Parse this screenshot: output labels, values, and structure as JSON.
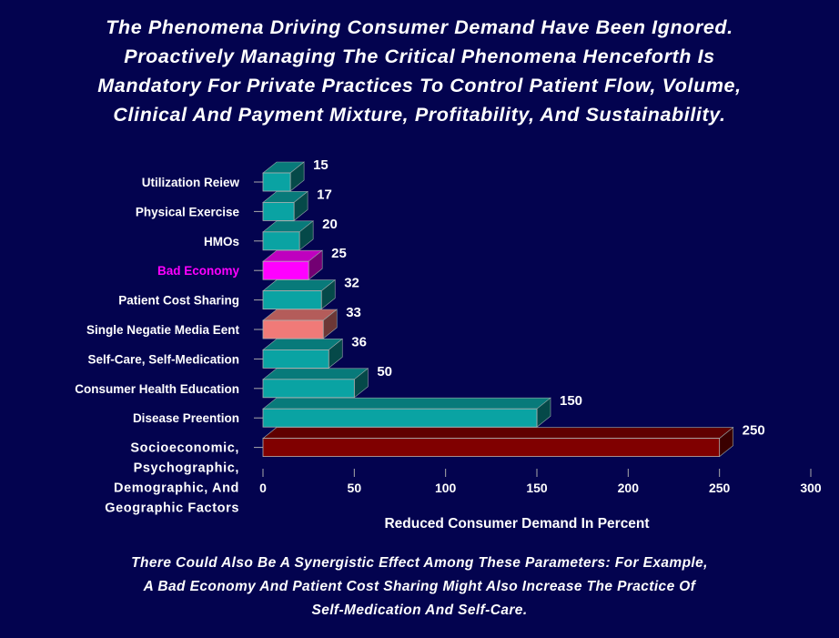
{
  "title_lines": [
    "The Phenomena Driving Consumer Demand Have Been Ignored.",
    "Proactively Managing The Critical Phenomena Henceforth Is",
    "Mandatory For Private Practices To Control Patient Flow, Volume,",
    "Clinical And Payment Mixture, Profitability, And Sustainability."
  ],
  "footer_lines": [
    "There Could Also Be A Synergistic Effect Among These Parameters: For Example,",
    "A Bad Economy And Patient Cost Sharing Might Also Increase The Practice Of",
    "Self-Medication And Self-Care."
  ],
  "colors": {
    "background": "#03034f",
    "teal": "#0aa3a3",
    "magenta": "#ff00ff",
    "salmon": "#f07a78",
    "dark_red": "#800000"
  },
  "chart_data": {
    "type": "bar",
    "orientation": "horizontal",
    "style": "3d",
    "xlabel": "Reduced Consumer Demand In Percent",
    "xlim": [
      0,
      300
    ],
    "xticks": [
      "0",
      "50",
      "100",
      "150",
      "200",
      "250",
      "300"
    ],
    "grid": false,
    "categories": [
      {
        "label": [
          "Utilization Reiew"
        ],
        "value": 15,
        "color": "teal",
        "label_color": "#ffffff"
      },
      {
        "label": [
          "Physical Exercise"
        ],
        "value": 17,
        "color": "teal",
        "label_color": "#ffffff"
      },
      {
        "label": [
          "HMOs"
        ],
        "value": 20,
        "color": "teal",
        "label_color": "#ffffff"
      },
      {
        "label": [
          "Bad Economy"
        ],
        "value": 25,
        "color": "magenta",
        "label_color": "#ff00ff"
      },
      {
        "label": [
          "Patient Cost Sharing"
        ],
        "value": 32,
        "color": "teal",
        "label_color": "#ffffff"
      },
      {
        "label": [
          "Single Negatie Media Eent"
        ],
        "value": 33,
        "color": "salmon",
        "label_color": "#ffffff"
      },
      {
        "label": [
          "Self-Care, Self-Medication"
        ],
        "value": 36,
        "color": "teal",
        "label_color": "#ffffff"
      },
      {
        "label": [
          "Consumer Health Education"
        ],
        "value": 50,
        "color": "teal",
        "label_color": "#ffffff"
      },
      {
        "label": [
          "Disease Preention"
        ],
        "value": 150,
        "color": "teal",
        "label_color": "#ffffff"
      },
      {
        "label": [
          "Socioeconomic,",
          "Psychographic,",
          "Demographic, And",
          "Geographic Factors"
        ],
        "value": 250,
        "color": "dark_red",
        "label_color": "#ffffff"
      }
    ]
  }
}
